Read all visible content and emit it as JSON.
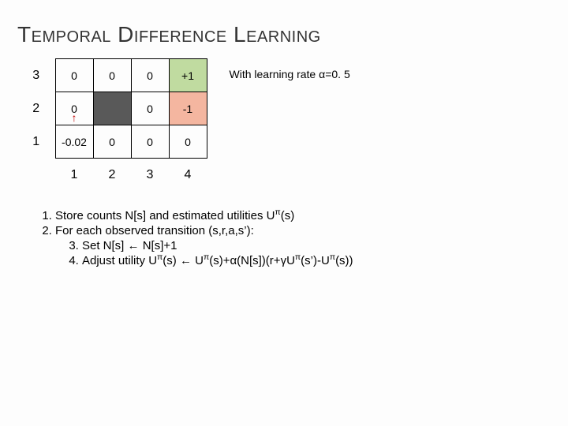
{
  "title": "Temporal Difference Learning",
  "learning_rate_text": "With learning rate α=0. 5",
  "grid": {
    "row_headers": [
      "3",
      "2",
      "1"
    ],
    "col_headers": [
      "1",
      "2",
      "3",
      "4"
    ],
    "cells": [
      [
        {
          "v": "0"
        },
        {
          "v": "0"
        },
        {
          "v": "0"
        },
        {
          "v": "+1",
          "cls": "goal-pos"
        }
      ],
      [
        {
          "v": "0",
          "arrow": true
        },
        {
          "v": "",
          "cls": "obstacle"
        },
        {
          "v": "0"
        },
        {
          "v": "-1",
          "cls": "goal-neg"
        }
      ],
      [
        {
          "v": "-0.02"
        },
        {
          "v": "0"
        },
        {
          "v": "0"
        },
        {
          "v": "0"
        }
      ]
    ]
  },
  "algo": {
    "pi": "π",
    "alpha": "α",
    "gamma": "γ",
    "leftarrow": "←",
    "step1_a": "Store counts N[s] and estimated utilities U",
    "step1_b": "(s)",
    "step2": "For each observed transition (s,r,a,s’):",
    "step3_a": "Set N[s] ",
    "step3_b": " N[s]+1",
    "step4_a": "Adjust utility U",
    "step4_b": "(s) ",
    "step4_c": " U",
    "step4_d": "(s)+",
    "step4_e": "(N[s])(r+",
    "step4_f": "U",
    "step4_g": "(s’)-U",
    "step4_h": "(s))"
  }
}
